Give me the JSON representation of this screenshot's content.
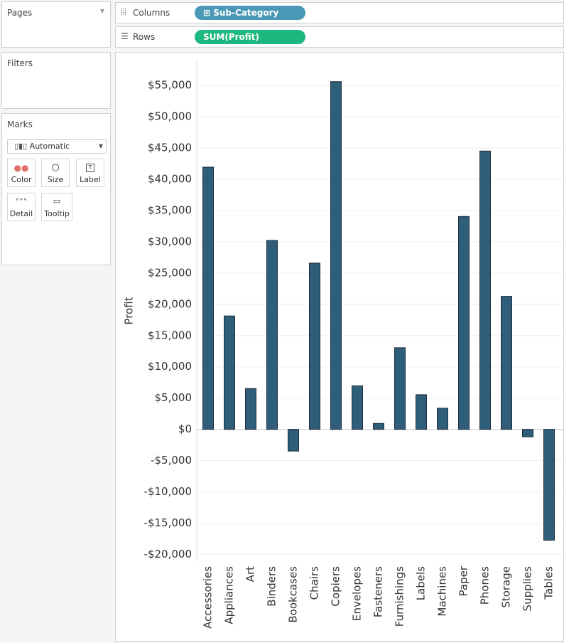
{
  "ui": {
    "pages": "Pages",
    "filters": "Filters",
    "marks": "Marks",
    "mark_type": "Automatic",
    "mark_buttons": [
      "Color",
      "Size",
      "Label",
      "Detail",
      "Tooltip"
    ],
    "columns_label": "Columns",
    "columns_pill": "Sub-Category",
    "rows_label": "Rows",
    "rows_pill": "SUM(Profit)"
  },
  "chart_data": {
    "type": "bar",
    "y_label": "Profit",
    "categories": [
      "Accessories",
      "Appliances",
      "Art",
      "Binders",
      "Bookcases",
      "Chairs",
      "Copiers",
      "Envelopes",
      "Fasteners",
      "Furnishings",
      "Labels",
      "Machines",
      "Paper",
      "Phones",
      "Storage",
      "Supplies",
      "Tables"
    ],
    "values": [
      41937,
      18138,
      6528,
      30222,
      -3473,
      26590,
      55618,
      6964,
      950,
      13059,
      5546,
      3385,
      34054,
      44516,
      21279,
      -1189,
      -17725
    ],
    "color": "#2e5e7a",
    "ylim": [
      -21200,
      59000
    ],
    "yticks": [
      {
        "value": -20000,
        "label": "-$20,000"
      },
      {
        "value": -15000,
        "label": "-$15,000"
      },
      {
        "value": -10000,
        "label": "-$10,000"
      },
      {
        "value": -5000,
        "label": "-$5,000"
      },
      {
        "value": 0,
        "label": "$0"
      },
      {
        "value": 5000,
        "label": "$5,000"
      },
      {
        "value": 10000,
        "label": "$10,000"
      },
      {
        "value": 15000,
        "label": "$15,000"
      },
      {
        "value": 20000,
        "label": "$20,000"
      },
      {
        "value": 25000,
        "label": "$25,000"
      },
      {
        "value": 30000,
        "label": "$30,000"
      },
      {
        "value": 35000,
        "label": "$35,000"
      },
      {
        "value": 40000,
        "label": "$40,000"
      },
      {
        "value": 45000,
        "label": "$45,000"
      },
      {
        "value": 50000,
        "label": "$50,000"
      },
      {
        "value": 55000,
        "label": "$55,000"
      }
    ],
    "grid": true
  }
}
